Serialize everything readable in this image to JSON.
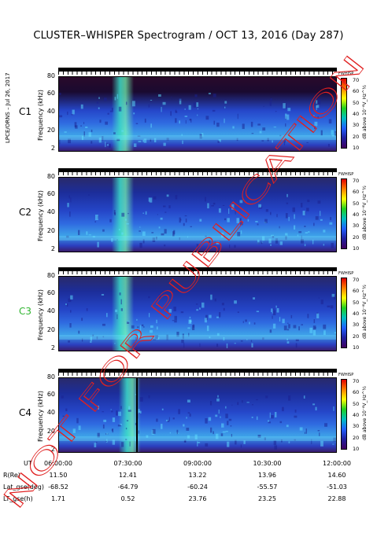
{
  "header": {
    "title": "CLUSTER–WHISPER Spectrogram / OCT 13, 2016 (Day 287)",
    "side_label": "LPCE/ORNS – Jul 26, 2017"
  },
  "chart_data": {
    "type": "heatmap",
    "x_ticks": [
      "06:00:00",
      "07:30:00",
      "09:00:00",
      "10:30:00",
      "12:00:00"
    ],
    "x_range_hours": [
      6.0,
      12.0
    ],
    "y_ticks": [
      "80",
      "60",
      "40",
      "20",
      "2"
    ],
    "ylabel": "Frequency (kHz)",
    "colorbar": {
      "title": "FWHISP",
      "ticks": [
        "70",
        "60",
        "50",
        "40",
        "30",
        "20",
        "10"
      ],
      "label": "dB above 10⁻⁸V_Hz^½",
      "range": [
        10,
        70
      ]
    },
    "panels": [
      {
        "name": "C1",
        "color": "#000000"
      },
      {
        "name": "C2",
        "color": "#000000"
      },
      {
        "name": "C3",
        "color": "#2fb52f"
      },
      {
        "name": "C4",
        "color": "#000000"
      }
    ],
    "ephemeris": [
      {
        "label": "UT",
        "values": [
          "06:00:00",
          "07:30:00",
          "09:00:00",
          "10:30:00",
          "12:00:00"
        ]
      },
      {
        "label": "R(Re)",
        "values": [
          "11.50",
          "12.41",
          "13.22",
          "13.96",
          "14.60"
        ]
      },
      {
        "label": "Lat_gse(deg)",
        "values": [
          "-68.52",
          "-64.79",
          "-60.24",
          "-55.57",
          "-51.03"
        ]
      },
      {
        "label": "LT_gse(h)",
        "values": [
          "1.71",
          "0.52",
          "23.76",
          "23.25",
          "22.88"
        ]
      }
    ]
  },
  "watermark": {
    "text": "NOT FOR PUBLICATION",
    "color": "#e02020"
  }
}
